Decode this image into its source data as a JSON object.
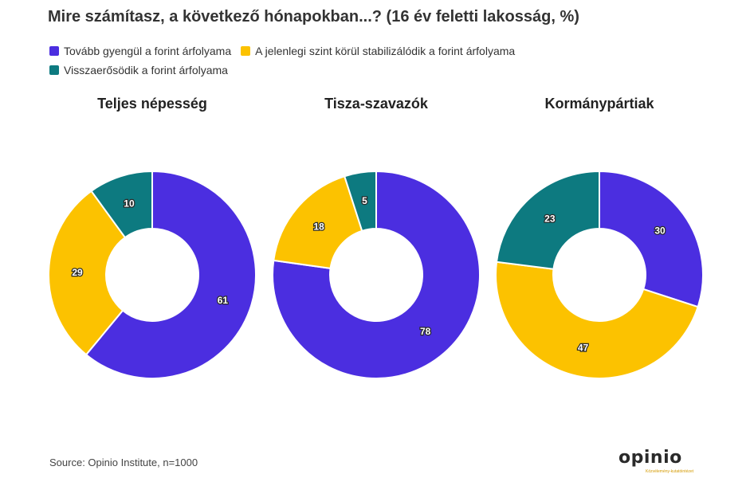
{
  "title": "Mire számítasz, a következő hónapokban...? (16 év feletti lakosság, %)",
  "legend": [
    {
      "label": "Tovább gyengül a forint árfolyama",
      "color": "#4b2ee0"
    },
    {
      "label": "A jelenlegi szint körül stabilizálódik a forint árfolyama",
      "color": "#fcc200"
    },
    {
      "label": "Visszaerősödik a forint árfolyama",
      "color": "#0d7a80"
    }
  ],
  "chart_data": [
    {
      "type": "pie",
      "title": "Teljes népesség",
      "categories": [
        "Tovább gyengül a forint árfolyama",
        "A jelenlegi szint körül stabilizálódik a forint árfolyama",
        "Visszaerősödik a forint árfolyama"
      ],
      "values": [
        61,
        29,
        10
      ]
    },
    {
      "type": "pie",
      "title": "Tisza-szavazók",
      "categories": [
        "Tovább gyengül a forint árfolyama",
        "A jelenlegi szint körül stabilizálódik a forint árfolyama",
        "Visszaerősödik a forint árfolyama"
      ],
      "values": [
        78,
        18,
        5
      ]
    },
    {
      "type": "pie",
      "title": "Kormánypártiak",
      "categories": [
        "Tovább gyengül a forint árfolyama",
        "A jelenlegi szint körül stabilizálódik a forint árfolyama",
        "Visszaerősödik a forint árfolyama"
      ],
      "values": [
        30,
        47,
        23
      ]
    }
  ],
  "source": "Source: Opinio Institute, n=1000",
  "logo": {
    "text": "opinio",
    "tagline": "Közvélemény-kutatóintézet"
  }
}
